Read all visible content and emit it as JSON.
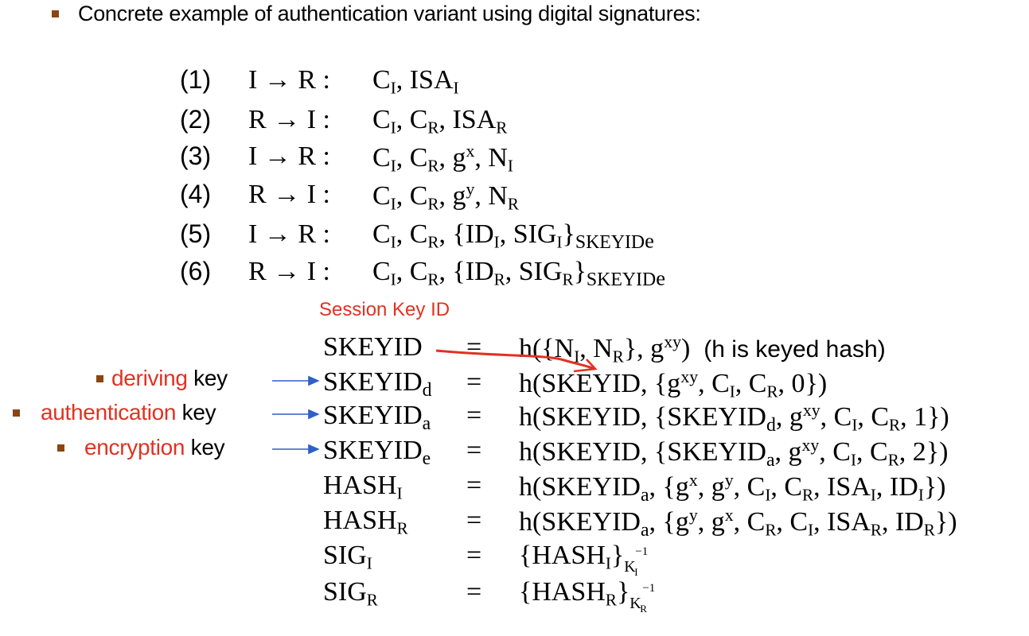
{
  "heading": "Concrete example of authentication variant using digital signatures:",
  "messages": [
    {
      "num": "(1)",
      "from": "I",
      "to": "R",
      "payload": [
        "C",
        "I",
        ", ISA",
        "I"
      ]
    },
    {
      "num": "(2)",
      "from": "R",
      "to": "I",
      "payload": [
        "C",
        "I",
        ", C",
        "R",
        ", ISA",
        "R"
      ]
    },
    {
      "num": "(3)",
      "from": "I",
      "to": "R",
      "payload": [
        "C",
        "I",
        ", C",
        "R",
        ", g",
        "x",
        ", N",
        "I"
      ]
    },
    {
      "num": "(4)",
      "from": "R",
      "to": "I",
      "payload": [
        "C",
        "I",
        ", C",
        "R",
        ", g",
        "y",
        ", N",
        "R"
      ]
    },
    {
      "num": "(5)",
      "from": "I",
      "to": "R",
      "payload": [
        "C",
        "I",
        ", C",
        "R",
        ", {ID",
        "I",
        ", SIG",
        "I",
        "}",
        "SKEYID",
        "e"
      ]
    },
    {
      "num": "(6)",
      "from": "R",
      "to": "I",
      "payload": [
        "C",
        "I",
        ", C",
        "R",
        ", {ID",
        "R",
        ", SIG",
        "R",
        "}",
        "SKEYID",
        "e"
      ]
    }
  ],
  "session_key_annotation": "Session Key ID",
  "definitions": {
    "skeyid": {
      "lhs": "SKEYID",
      "rhs": [
        "h({N",
        "I",
        ", N",
        "R",
        "}, g",
        "xy",
        ")"
      ],
      "note": "(h is keyed hash)"
    },
    "skeyid_d": {
      "lhs": [
        "SKEYID",
        "d"
      ],
      "rhs": [
        "h(SKEYID, {g",
        "xy",
        ", C",
        "I",
        ", C",
        "R",
        ", 0})"
      ]
    },
    "skeyid_a": {
      "lhs": [
        "SKEYID",
        "a"
      ],
      "rhs": [
        "h(SKEYID, {SKEYID",
        "d",
        ", g",
        "xy",
        ", C",
        "I",
        ", C",
        "R",
        ", 1})"
      ]
    },
    "skeyid_e": {
      "lhs": [
        "SKEYID",
        "e"
      ],
      "rhs": [
        "h(SKEYID, {SKEYID",
        "a",
        ", g",
        "xy",
        ", C",
        "I",
        ", C",
        "R",
        ", 2})"
      ]
    },
    "hash_i": {
      "lhs": [
        "HASH",
        "I"
      ],
      "rhs": [
        "h(SKEYID",
        "a",
        ", {g",
        "x",
        ", g",
        "y",
        ", C",
        "I",
        ", C",
        "R",
        ", ISA",
        "I",
        ", ID",
        "I",
        "})"
      ]
    },
    "hash_r": {
      "lhs": [
        "HASH",
        "R"
      ],
      "rhs": [
        "h(SKEYID",
        "a",
        ", {g",
        "y",
        ", g",
        "x",
        ", C",
        "R",
        ", C",
        "I",
        ", ISA",
        "R",
        ", ID",
        "R",
        "})"
      ]
    },
    "sig_i": {
      "lhs": [
        "SIG",
        "I"
      ],
      "rhs": [
        "{HASH",
        "I",
        "}",
        "K",
        "I",
        "−1"
      ]
    },
    "sig_r": {
      "lhs": [
        "SIG",
        "R"
      ],
      "rhs": [
        "{HASH",
        "R",
        "}",
        "K",
        "R",
        "−1"
      ]
    }
  },
  "equals": "=",
  "arrow": "→",
  "colon": ":",
  "key_labels": [
    {
      "highlight": "deriving",
      "rest": " key"
    },
    {
      "highlight": "authentication",
      "rest": " key"
    },
    {
      "highlight": "encryption",
      "rest": " key"
    }
  ],
  "colors": {
    "bullet": "#8b4513",
    "annotation": "#e03222",
    "arrow_blue": "#2f5fc8"
  }
}
